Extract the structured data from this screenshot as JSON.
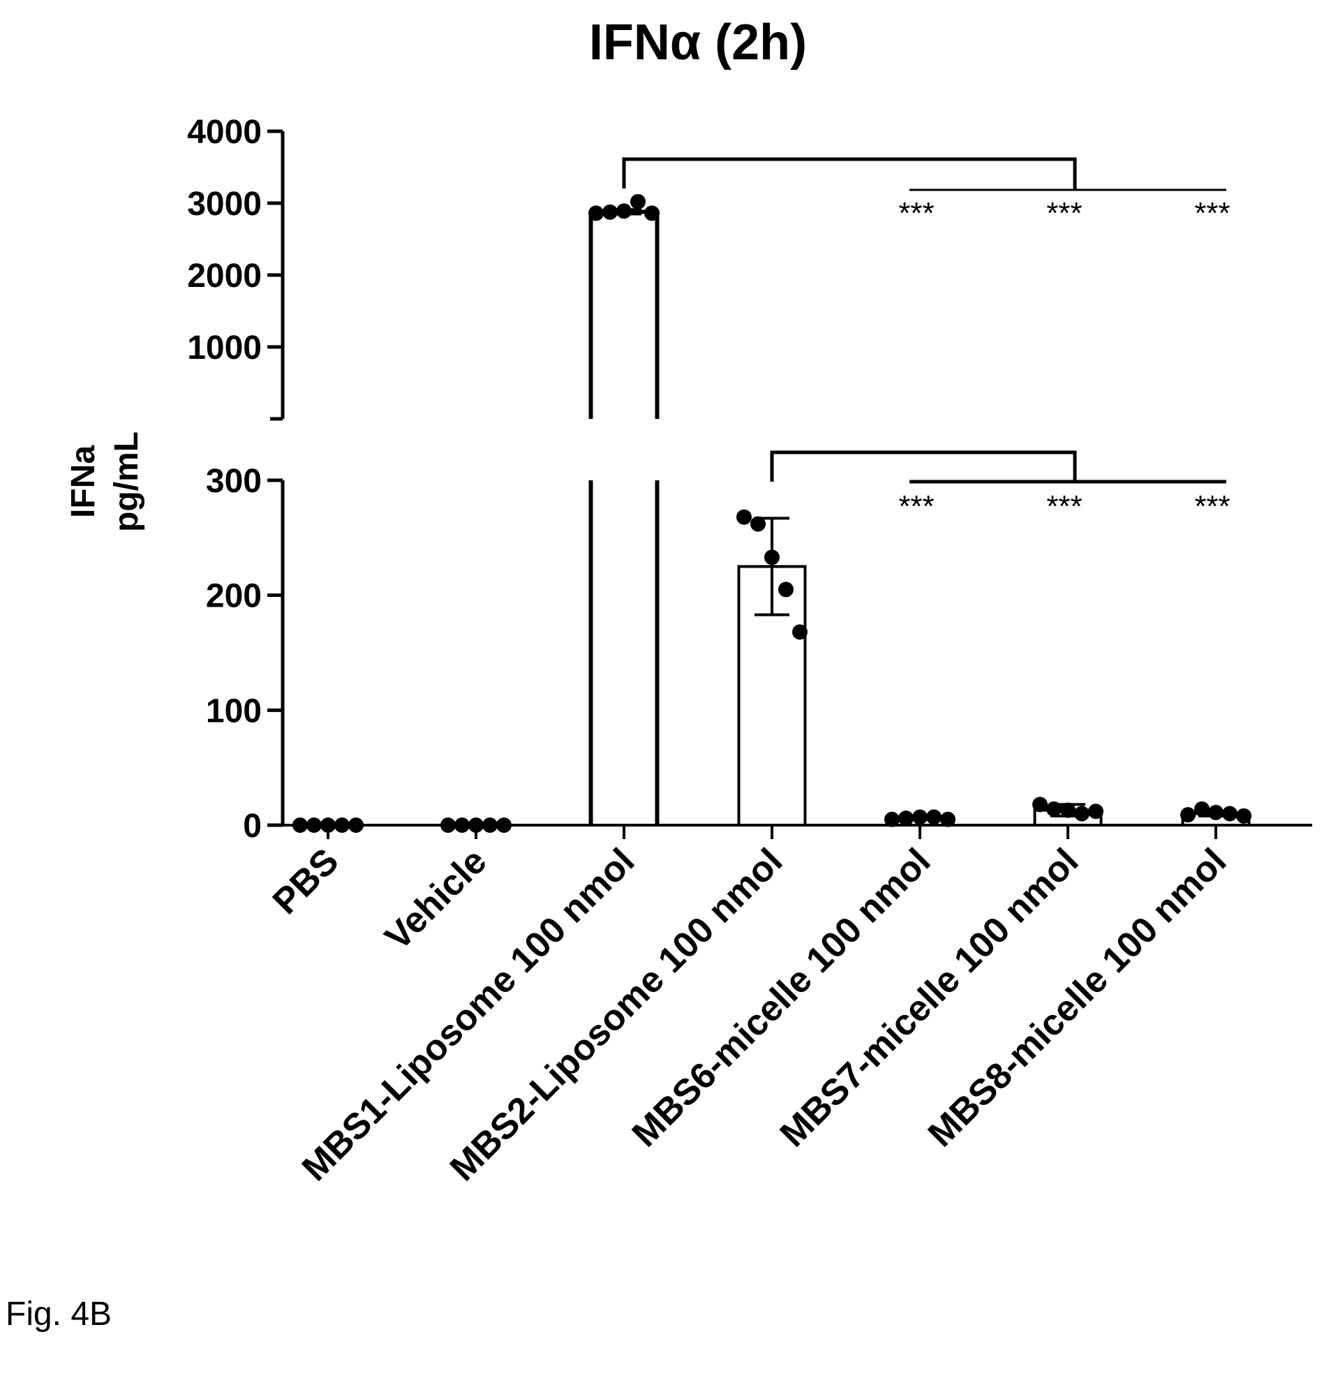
{
  "chart_data": {
    "type": "bar",
    "title": "IFNα (2h)",
    "ylabel": "IFNa pg/mL",
    "ylabel_lines": [
      "IFNa",
      "pg/mL"
    ],
    "axis_break": true,
    "lower_ylim": [
      0,
      300
    ],
    "upper_ylim": [
      0,
      4000
    ],
    "lower_ticks": [
      0,
      100,
      200,
      300
    ],
    "upper_ticks": [
      1000,
      2000,
      3000,
      4000
    ],
    "categories": [
      "PBS",
      "Vehicle",
      "MBS1-Liposome 100 nmol",
      "MBS2-Liposome 100 nmol",
      "MBS6-micelle 100 nmol",
      "MBS7-micelle 100 nmol",
      "MBS8-micelle 100 nmol"
    ],
    "values": [
      0,
      0,
      2880,
      225,
      6,
      13,
      10
    ],
    "error": [
      0,
      0,
      30,
      42,
      1,
      5,
      2
    ],
    "points": [
      [
        0,
        0,
        0,
        0,
        0
      ],
      [
        0,
        0,
        0,
        0,
        0
      ],
      [
        2860,
        2875,
        2890,
        3020,
        2860
      ],
      [
        268,
        262,
        233,
        205,
        168
      ],
      [
        5,
        6,
        7,
        7,
        5
      ],
      [
        18,
        14,
        13,
        10,
        12
      ],
      [
        9,
        14,
        11,
        10,
        8
      ]
    ],
    "significance": [
      {
        "reference": 2,
        "targets": [
          4,
          5,
          6
        ],
        "label": "***"
      },
      {
        "reference": 3,
        "targets": [
          4,
          5,
          6
        ],
        "label": "***"
      }
    ],
    "grid": false,
    "legend": "none"
  },
  "figure_label": "Fig. 4B"
}
